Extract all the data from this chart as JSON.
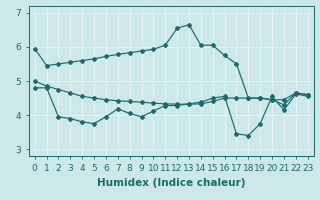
{
  "xlabel": "Humidex (Indice chaleur)",
  "x_ticks": [
    0,
    1,
    2,
    3,
    4,
    5,
    6,
    7,
    8,
    9,
    10,
    11,
    12,
    13,
    14,
    15,
    16,
    17,
    18,
    19,
    20,
    21,
    22,
    23
  ],
  "ylim": [
    2.8,
    7.2
  ],
  "xlim": [
    -0.5,
    23.5
  ],
  "bg_color": "#cce8e8",
  "grid_color": "#e8f4f4",
  "line_color": "#1a6b6b",
  "line1_y": [
    5.95,
    5.45,
    5.5,
    5.55,
    5.6,
    5.65,
    5.72,
    5.78,
    5.83,
    5.88,
    5.93,
    6.05,
    6.55,
    6.65,
    6.05,
    6.05,
    5.75,
    5.5,
    4.5,
    4.5,
    4.45,
    4.45,
    4.65,
    4.6
  ],
  "line2_y": [
    5.0,
    4.85,
    4.75,
    4.65,
    4.55,
    4.5,
    4.45,
    4.42,
    4.4,
    4.38,
    4.35,
    4.33,
    4.32,
    4.32,
    4.33,
    4.4,
    4.5,
    4.5,
    4.5,
    4.5,
    4.45,
    4.3,
    4.65,
    4.6
  ],
  "line3_y": [
    4.8,
    4.8,
    3.95,
    3.9,
    3.8,
    3.75,
    3.95,
    4.18,
    4.05,
    3.95,
    4.12,
    4.28,
    4.28,
    4.33,
    4.38,
    4.5,
    4.55,
    3.45,
    3.4,
    3.75,
    4.55,
    4.15,
    4.62,
    4.55
  ],
  "yticks": [
    3,
    4,
    5,
    6,
    7
  ],
  "tick_fontsize": 6.5,
  "label_fontsize": 7.5,
  "marker": "D",
  "markersize": 2.0,
  "linewidth": 0.85
}
